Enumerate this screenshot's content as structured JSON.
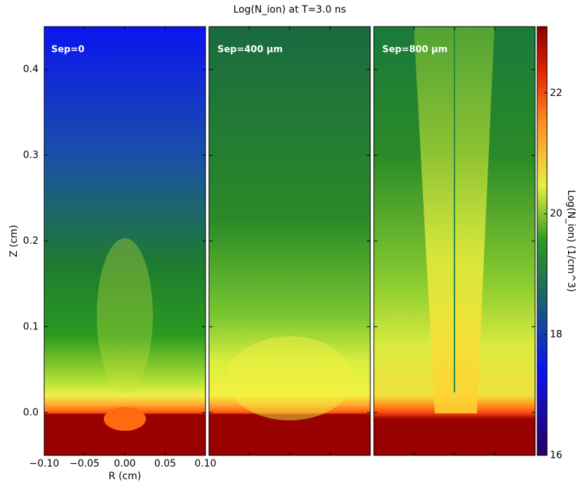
{
  "chart_data": {
    "type": "heatmap",
    "title": "Log(N_ion) at T=3.0 ns",
    "xlabel": "R (cm)",
    "ylabel": "Z (cm)",
    "panels": [
      {
        "label": "Sep=0"
      },
      {
        "label": "Sep=400 μm"
      },
      {
        "label": "Sep=800 μm"
      }
    ],
    "xlim": [
      -0.1,
      0.1
    ],
    "xticks": [
      {
        "value": -0.1,
        "label": "−0.10"
      },
      {
        "value": -0.05,
        "label": "−0.05"
      },
      {
        "value": 0,
        "label": "0.00"
      },
      0.05,
      {
        "value": 0.1,
        "label": "0.10"
      }
    ],
    "ylim": [
      -0.05,
      0.45
    ],
    "yticks": [
      {
        "value": 0,
        "label": "0.0"
      },
      0.1,
      0.2,
      0.3,
      0.4
    ],
    "colorbar": {
      "label": "Log(N_ion) (1/cm^3)",
      "lim": [
        16,
        23.1
      ],
      "ticks": [
        16,
        18,
        20,
        22
      ]
    }
  }
}
